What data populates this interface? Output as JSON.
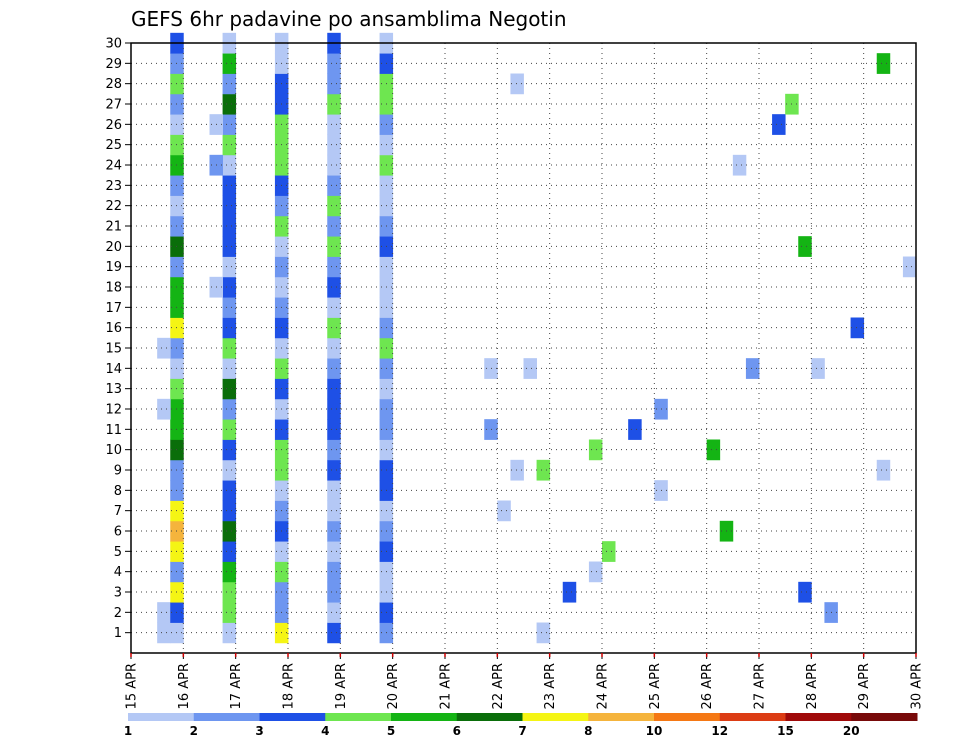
{
  "chart_data": {
    "type": "heatmap",
    "title": "GEFS 6hr padavine po ansamblima Negotin",
    "xlabel": "",
    "ylabel": "",
    "x_ticks": [
      "15 APR",
      "16 APR",
      "17 APR",
      "18 APR",
      "19 APR",
      "20 APR",
      "21 APR",
      "22 APR",
      "23 APR",
      "24 APR",
      "25 APR",
      "26 APR",
      "27 APR",
      "28 APR",
      "29 APR",
      "30 APR"
    ],
    "y_ticks": [
      1,
      2,
      3,
      4,
      5,
      6,
      7,
      8,
      9,
      10,
      11,
      12,
      13,
      14,
      15,
      16,
      17,
      18,
      19,
      20,
      21,
      22,
      23,
      24,
      25,
      26,
      27,
      28,
      29,
      30
    ],
    "xlim": [
      "15 APR",
      "30 APR"
    ],
    "ylim": [
      0,
      30
    ],
    "time_step_hours": 6,
    "grid": true,
    "legend_position": "bottom",
    "color_levels": [
      1,
      2,
      3,
      4,
      5,
      6,
      7,
      8,
      10,
      12,
      15,
      20
    ],
    "color_bins": [
      "#b4c8f5",
      "#6e96f0",
      "#1e50e6",
      "#6ee650",
      "#14b414",
      "#0a6e0a",
      "#f5f514",
      "#f5b43c",
      "#f57814",
      "#dc3c14",
      "#a00a0a",
      "#780a0a"
    ],
    "cells": [
      [
        2,
        1,
        0
      ],
      [
        2,
        2,
        0
      ],
      [
        3,
        1,
        0
      ],
      [
        3,
        2,
        2
      ],
      [
        3,
        3,
        6
      ],
      [
        3,
        4,
        1
      ],
      [
        3,
        5,
        6
      ],
      [
        3,
        6,
        7
      ],
      [
        3,
        7,
        6
      ],
      [
        3,
        8,
        1
      ],
      [
        3,
        9,
        1
      ],
      [
        3,
        10,
        5
      ],
      [
        3,
        11,
        4
      ],
      [
        3,
        12,
        4
      ],
      [
        3,
        13,
        3
      ],
      [
        3,
        14,
        0
      ],
      [
        3,
        15,
        1
      ],
      [
        3,
        16,
        6
      ],
      [
        3,
        17,
        4
      ],
      [
        3,
        18,
        4
      ],
      [
        3,
        19,
        1
      ],
      [
        3,
        20,
        5
      ],
      [
        3,
        21,
        1
      ],
      [
        3,
        22,
        0
      ],
      [
        3,
        23,
        1
      ],
      [
        3,
        24,
        4
      ],
      [
        3,
        25,
        3
      ],
      [
        3,
        26,
        0
      ],
      [
        3,
        27,
        1
      ],
      [
        3,
        28,
        3
      ],
      [
        3,
        29,
        1
      ],
      [
        3,
        30,
        2
      ],
      [
        7,
        1,
        0
      ],
      [
        7,
        2,
        3
      ],
      [
        7,
        3,
        3
      ],
      [
        7,
        4,
        4
      ],
      [
        7,
        5,
        2
      ],
      [
        7,
        6,
        5
      ],
      [
        7,
        7,
        2
      ],
      [
        7,
        8,
        2
      ],
      [
        7,
        9,
        0
      ],
      [
        7,
        10,
        2
      ],
      [
        7,
        11,
        3
      ],
      [
        7,
        12,
        1
      ],
      [
        7,
        13,
        5
      ],
      [
        7,
        14,
        0
      ],
      [
        7,
        15,
        3
      ],
      [
        7,
        16,
        2
      ],
      [
        7,
        17,
        1
      ],
      [
        7,
        18,
        2
      ],
      [
        7,
        19,
        0
      ],
      [
        7,
        20,
        2
      ],
      [
        7,
        21,
        2
      ],
      [
        7,
        22,
        2
      ],
      [
        7,
        23,
        2
      ],
      [
        7,
        24,
        0
      ],
      [
        7,
        25,
        3
      ],
      [
        7,
        26,
        1
      ],
      [
        7,
        27,
        5
      ],
      [
        7,
        28,
        1
      ],
      [
        7,
        29,
        4
      ],
      [
        7,
        30,
        0
      ],
      [
        11,
        1,
        6
      ],
      [
        11,
        2,
        1
      ],
      [
        11,
        3,
        1
      ],
      [
        11,
        4,
        3
      ],
      [
        11,
        5,
        0
      ],
      [
        11,
        6,
        2
      ],
      [
        11,
        7,
        1
      ],
      [
        11,
        8,
        0
      ],
      [
        11,
        9,
        3
      ],
      [
        11,
        10,
        3
      ],
      [
        11,
        11,
        2
      ],
      [
        11,
        12,
        0
      ],
      [
        11,
        13,
        2
      ],
      [
        11,
        14,
        3
      ],
      [
        11,
        15,
        0
      ],
      [
        11,
        16,
        2
      ],
      [
        11,
        17,
        1
      ],
      [
        11,
        18,
        0
      ],
      [
        11,
        19,
        1
      ],
      [
        11,
        20,
        0
      ],
      [
        11,
        21,
        3
      ],
      [
        11,
        22,
        1
      ],
      [
        11,
        23,
        2
      ],
      [
        11,
        24,
        3
      ],
      [
        11,
        25,
        3
      ],
      [
        11,
        26,
        3
      ],
      [
        11,
        27,
        2
      ],
      [
        11,
        28,
        2
      ],
      [
        11,
        29,
        0
      ],
      [
        11,
        30,
        0
      ],
      [
        15,
        1,
        2
      ],
      [
        15,
        2,
        0
      ],
      [
        15,
        3,
        1
      ],
      [
        15,
        4,
        1
      ],
      [
        15,
        5,
        0
      ],
      [
        15,
        6,
        1
      ],
      [
        15,
        7,
        0
      ],
      [
        15,
        8,
        0
      ],
      [
        15,
        9,
        2
      ],
      [
        15,
        10,
        1
      ],
      [
        15,
        11,
        2
      ],
      [
        15,
        12,
        2
      ],
      [
        15,
        13,
        2
      ],
      [
        15,
        14,
        1
      ],
      [
        15,
        15,
        0
      ],
      [
        15,
        16,
        3
      ],
      [
        15,
        17,
        0
      ],
      [
        15,
        18,
        2
      ],
      [
        15,
        19,
        1
      ],
      [
        15,
        20,
        3
      ],
      [
        15,
        21,
        1
      ],
      [
        15,
        22,
        3
      ],
      [
        15,
        23,
        1
      ],
      [
        15,
        24,
        0
      ],
      [
        15,
        25,
        0
      ],
      [
        15,
        26,
        0
      ],
      [
        15,
        27,
        3
      ],
      [
        15,
        28,
        1
      ],
      [
        15,
        29,
        1
      ],
      [
        15,
        30,
        2
      ],
      [
        19,
        1,
        1
      ],
      [
        19,
        2,
        2
      ],
      [
        19,
        3,
        0
      ],
      [
        19,
        4,
        0
      ],
      [
        19,
        5,
        2
      ],
      [
        19,
        6,
        1
      ],
      [
        19,
        7,
        0
      ],
      [
        19,
        8,
        2
      ],
      [
        19,
        9,
        2
      ],
      [
        19,
        10,
        0
      ],
      [
        19,
        11,
        1
      ],
      [
        19,
        12,
        1
      ],
      [
        19,
        13,
        0
      ],
      [
        19,
        14,
        1
      ],
      [
        19,
        15,
        3
      ],
      [
        19,
        16,
        1
      ],
      [
        19,
        17,
        0
      ],
      [
        19,
        18,
        0
      ],
      [
        19,
        19,
        0
      ],
      [
        19,
        20,
        2
      ],
      [
        19,
        21,
        1
      ],
      [
        19,
        22,
        0
      ],
      [
        19,
        23,
        0
      ],
      [
        19,
        24,
        3
      ],
      [
        19,
        25,
        0
      ],
      [
        19,
        26,
        1
      ],
      [
        19,
        27,
        3
      ],
      [
        19,
        28,
        3
      ],
      [
        19,
        29,
        2
      ],
      [
        19,
        30,
        0
      ],
      [
        2,
        15,
        0
      ],
      [
        2,
        12,
        0
      ],
      [
        6,
        24,
        1
      ],
      [
        6,
        26,
        0
      ],
      [
        6,
        18,
        0
      ],
      [
        27,
        14,
        0
      ],
      [
        27,
        11,
        1
      ],
      [
        28,
        7,
        0
      ],
      [
        29,
        28,
        0
      ],
      [
        29,
        9,
        0
      ],
      [
        30,
        14,
        0
      ],
      [
        31,
        9,
        3
      ],
      [
        31,
        1,
        0
      ],
      [
        33,
        3,
        2
      ],
      [
        35,
        4,
        0
      ],
      [
        35,
        10,
        3
      ],
      [
        36,
        5,
        3
      ],
      [
        38,
        11,
        2
      ],
      [
        40,
        8,
        0
      ],
      [
        40,
        12,
        1
      ],
      [
        44,
        10,
        4
      ],
      [
        45,
        6,
        4
      ],
      [
        46,
        24,
        0
      ],
      [
        47,
        14,
        1
      ],
      [
        49,
        26,
        2
      ],
      [
        50,
        27,
        3
      ],
      [
        51,
        3,
        2
      ],
      [
        51,
        20,
        4
      ],
      [
        52,
        14,
        0
      ],
      [
        53,
        2,
        1
      ],
      [
        55,
        16,
        2
      ],
      [
        57,
        9,
        0
      ],
      [
        57,
        29,
        4
      ],
      [
        59,
        19,
        0
      ]
    ]
  }
}
